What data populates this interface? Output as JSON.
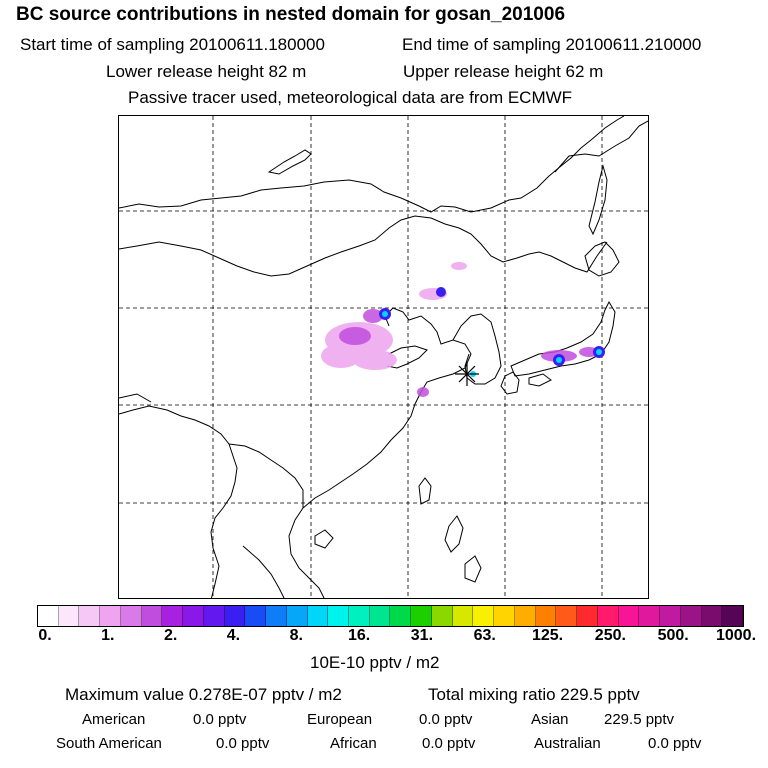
{
  "header": {
    "title": "BC  source contributions in nested domain for gosan_201006",
    "start_time": "Start time of sampling 20100611.180000",
    "end_time": "End time of sampling 20100611.210000",
    "lower_height": "Lower release height   82 m",
    "upper_height": "Upper release height   62 m",
    "tracer_note": "Passive tracer used, meteorological data are from ECMWF"
  },
  "map": {
    "receptor_marker": "asterisk-receptor-icon",
    "grid": "dashed"
  },
  "colorbar": {
    "colors": [
      "#ffffff",
      "#fbe6fb",
      "#f5c8f5",
      "#eea4ee",
      "#d87ae8",
      "#c14ddf",
      "#a820e0",
      "#8a18e8",
      "#6418f0",
      "#3a1ef2",
      "#1a4cf5",
      "#0f7cf8",
      "#06a6f8",
      "#00d6f8",
      "#00f2ec",
      "#00f0c0",
      "#00e690",
      "#00da4a",
      "#1cd000",
      "#8ad800",
      "#d6e800",
      "#f8f000",
      "#ffd400",
      "#ffae00",
      "#ff8000",
      "#ff5a1a",
      "#ff2a30",
      "#ff1a6e",
      "#f81496",
      "#e0189e",
      "#c01aa0",
      "#9a1488",
      "#7a0c6e",
      "#560456"
    ],
    "labels": [
      "0.",
      "1.",
      "2.",
      "4.",
      "8.",
      "16.",
      "31.",
      "63.",
      "125.",
      "250.",
      "500.",
      "1000."
    ],
    "units": "10E-10 pptv / m2"
  },
  "summary": {
    "max_value": "Maximum value  0.278E-07 pptv / m2",
    "total_mixing": "Total mixing ratio       229.5 pptv",
    "american_label": "American",
    "american_value": "0.0 pptv",
    "european_label": "European",
    "european_value": "0.0 pptv",
    "asian_label": "Asian",
    "asian_value": "229.5 pptv",
    "south_american_label": "South American",
    "south_american_value": "0.0 pptv",
    "african_label": "African",
    "african_value": "0.0 pptv",
    "australian_label": "Australian",
    "australian_value": "0.0 pptv"
  }
}
